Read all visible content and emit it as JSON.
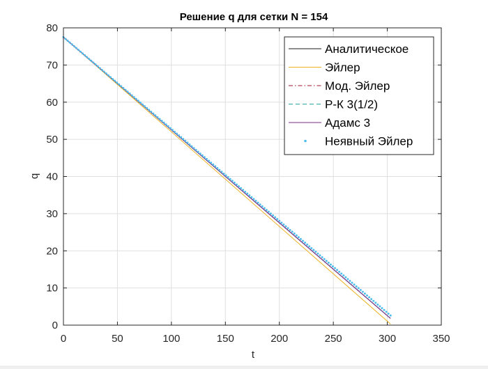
{
  "chart_data": {
    "type": "line",
    "title": "Решение q для сетки N = 154",
    "xlabel": "t",
    "ylabel": "q",
    "xlim": [
      0,
      350
    ],
    "ylim": [
      0,
      80
    ],
    "xticks": [
      0,
      50,
      100,
      150,
      200,
      250,
      300,
      350
    ],
    "yticks": [
      0,
      10,
      20,
      30,
      40,
      50,
      60,
      70,
      80
    ],
    "grid": true,
    "legend_position": "top-right",
    "series": [
      {
        "name": "Аналитическое",
        "color": "#1a1a1a",
        "style": "solid",
        "marker": "none",
        "x": [
          0,
          303
        ],
        "y": [
          77.5,
          1.8
        ]
      },
      {
        "name": "Эйлер",
        "color": "#EDB120",
        "style": "solid",
        "marker": "none",
        "x": [
          0,
          303
        ],
        "y": [
          77.5,
          0.3
        ]
      },
      {
        "name": "Мод. Эйлер",
        "color": "#A2142F",
        "style": "dashdot",
        "marker": "none",
        "x": [
          0,
          303
        ],
        "y": [
          77.5,
          1.8
        ]
      },
      {
        "name": "Р-К 3(1/2)",
        "color": "#2CA5A5",
        "style": "dashed",
        "marker": "none",
        "x": [
          0,
          303
        ],
        "y": [
          77.5,
          1.8
        ]
      },
      {
        "name": "Адамс 3",
        "color": "#7E2F8E",
        "style": "solid",
        "marker": "none",
        "x": [
          0,
          303
        ],
        "y": [
          77.5,
          1.8
        ]
      },
      {
        "name": "Неявный Эйлер",
        "color": "#4DBEEE",
        "style": "none",
        "marker": "dot",
        "x": [
          0,
          303
        ],
        "y": [
          77.5,
          2.6
        ],
        "points": 154
      }
    ]
  }
}
